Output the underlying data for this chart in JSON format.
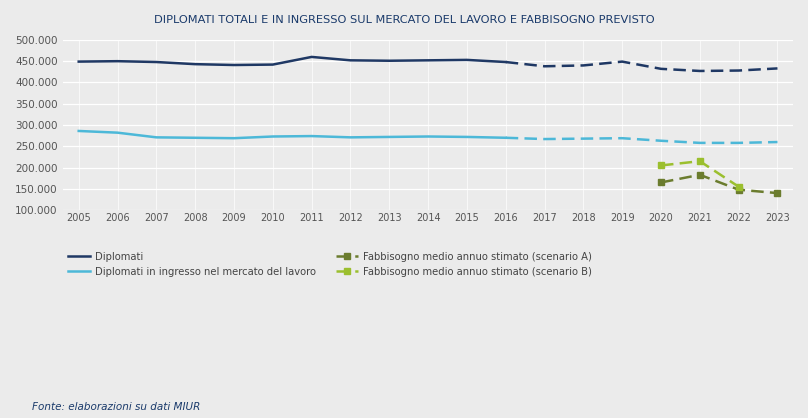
{
  "title_first": "D",
  "title_rest": "IPLOMATI TOTALI E IN INGRESSO SUL MERCATO DEL LAVORO E FABBISOGNO PREVISTO",
  "source": "Fonte: elaborazioni su dati MIUR",
  "years_solid": [
    2005,
    2006,
    2007,
    2008,
    2009,
    2010,
    2011,
    2012,
    2013,
    2014,
    2015,
    2016
  ],
  "years_dashed": [
    2016,
    2017,
    2018,
    2019,
    2020,
    2021,
    2022,
    2023
  ],
  "diplomati_solid": [
    449000,
    450000,
    448000,
    443000,
    441000,
    442000,
    460000,
    452000,
    451000,
    452000,
    453000,
    448000
  ],
  "diplomati_dashed": [
    448000,
    438000,
    440000,
    449000,
    432000,
    427000,
    428000,
    433000
  ],
  "mercato_solid": [
    286000,
    282000,
    271000,
    270000,
    269000,
    273000,
    274000,
    271000,
    272000,
    273000,
    272000,
    270000
  ],
  "mercato_dashed": [
    270000,
    267000,
    268000,
    269000,
    263000,
    258000,
    258000,
    260000
  ],
  "scen_a_years": [
    2020,
    2021,
    2022,
    2023
  ],
  "scen_a_vals": [
    165000,
    183000,
    148000,
    140000
  ],
  "scen_b_years": [
    2020,
    2021,
    2022
  ],
  "scen_b_vals": [
    205000,
    215000,
    155000
  ],
  "color_diplomati": "#1f3864",
  "color_mercato": "#4cb8d8",
  "color_scenA": "#6b7c2e",
  "color_scenB": "#9bbf2e",
  "ylim": [
    100000,
    500000
  ],
  "yticks": [
    100000,
    150000,
    200000,
    250000,
    300000,
    350000,
    400000,
    450000,
    500000
  ],
  "fig_bg": "#ebebeb",
  "plot_bg": "#ebebeb",
  "legend_diplomati": "Diplomati",
  "legend_mercato": "Diplomati in ingresso nel mercato del lavoro",
  "legend_scenA": "Fabbisogno medio annuo stimato (scenario A)",
  "legend_scenB": "Fabbisogno medio annuo stimato (scenario B)"
}
